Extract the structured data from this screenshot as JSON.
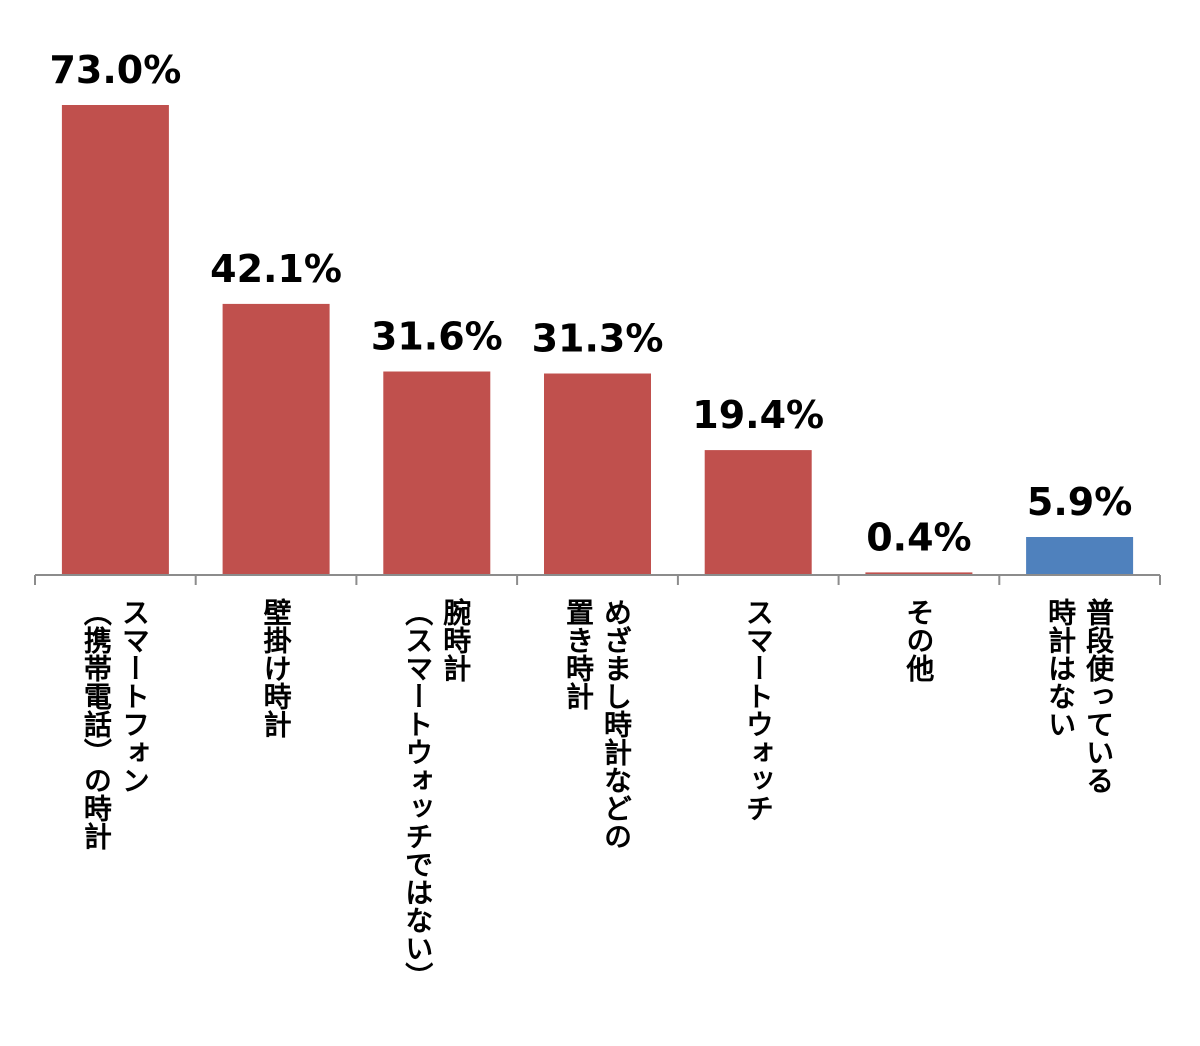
{
  "chart_data": {
    "type": "bar",
    "categories": [
      [
        "スマートフォン",
        "（携帯電話）の時計"
      ],
      [
        "壁掛け時計"
      ],
      [
        "腕時計",
        "（スマートウォッチではない）"
      ],
      [
        "めざまし時計などの",
        "置き時計"
      ],
      [
        "スマートウォッチ"
      ],
      [
        "その他"
      ],
      [
        "普段使っている",
        "時計はない"
      ]
    ],
    "values": [
      73.0,
      42.1,
      31.6,
      31.3,
      19.4,
      0.4,
      5.9
    ],
    "value_labels": [
      "73.0%",
      "42.1%",
      "31.6%",
      "31.3%",
      "19.4%",
      "0.4%",
      "5.9%"
    ],
    "colors": [
      "#c0504d",
      "#c0504d",
      "#c0504d",
      "#c0504d",
      "#c0504d",
      "#c0504d",
      "#4f81bd"
    ],
    "axis_color": "#8c8c8c",
    "ylim": [
      0,
      73.0
    ],
    "grid": false,
    "legend": "none",
    "title": "",
    "xlabel": "",
    "ylabel": ""
  }
}
